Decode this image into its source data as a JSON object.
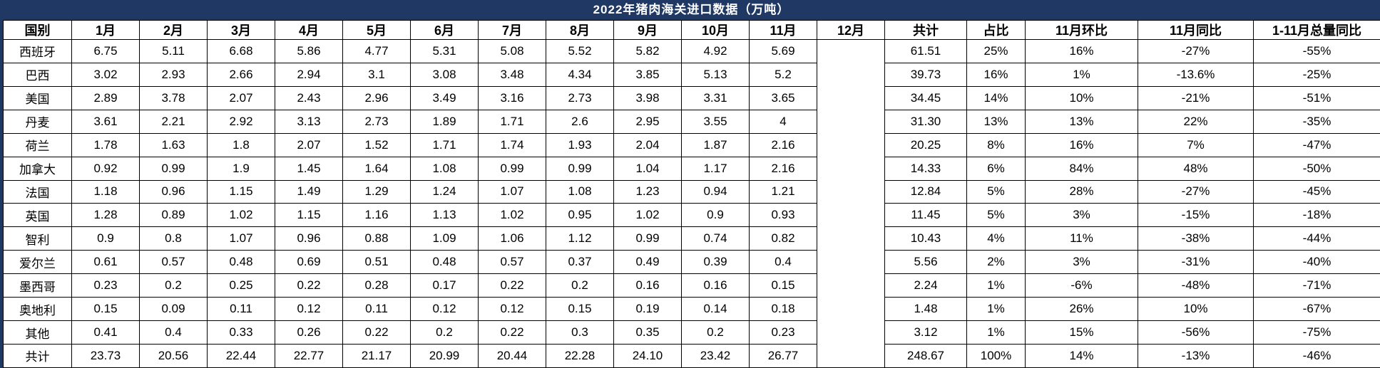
{
  "colors": {
    "title_bg": "#1f3864",
    "title_text": "#ffffff",
    "grid_border": "#000000",
    "cell_bg": "#ffffff",
    "cell_text": "#000000"
  },
  "chart_data": {
    "type": "table",
    "title": "2022年猪肉海关进口数据（万吨）",
    "columns": [
      "国别",
      "1月",
      "2月",
      "3月",
      "4月",
      "5月",
      "6月",
      "7月",
      "8月",
      "9月",
      "10月",
      "11月",
      "12月",
      "共计",
      "占比",
      "11月环比",
      "11月同比",
      "1-11月总量同比"
    ],
    "rows": [
      [
        "西班牙",
        "6.75",
        "5.11",
        "6.68",
        "5.86",
        "4.77",
        "5.31",
        "5.08",
        "5.52",
        "5.82",
        "4.92",
        "5.69",
        "",
        "61.51",
        "25%",
        "16%",
        "-27%",
        "-55%"
      ],
      [
        "巴西",
        "3.02",
        "2.93",
        "2.66",
        "2.94",
        "3.1",
        "3.08",
        "3.48",
        "4.34",
        "3.85",
        "5.13",
        "5.2",
        "",
        "39.73",
        "16%",
        "1%",
        "-13.6%",
        "-25%"
      ],
      [
        "美国",
        "2.89",
        "3.78",
        "2.07",
        "2.43",
        "2.96",
        "3.49",
        "3.16",
        "2.73",
        "3.98",
        "3.31",
        "3.65",
        "",
        "34.45",
        "14%",
        "10%",
        "-21%",
        "-51%"
      ],
      [
        "丹麦",
        "3.61",
        "2.21",
        "2.92",
        "3.13",
        "2.73",
        "1.89",
        "1.71",
        "2.6",
        "2.95",
        "3.55",
        "4",
        "",
        "31.30",
        "13%",
        "13%",
        "22%",
        "-35%"
      ],
      [
        "荷兰",
        "1.78",
        "1.63",
        "1.8",
        "2.07",
        "1.52",
        "1.71",
        "1.74",
        "1.93",
        "2.04",
        "1.87",
        "2.16",
        "",
        "20.25",
        "8%",
        "16%",
        "7%",
        "-47%"
      ],
      [
        "加拿大",
        "0.92",
        "0.99",
        "1.9",
        "1.45",
        "1.64",
        "1.08",
        "0.99",
        "0.99",
        "1.04",
        "1.17",
        "2.16",
        "",
        "14.33",
        "6%",
        "84%",
        "48%",
        "-50%"
      ],
      [
        "法国",
        "1.18",
        "0.96",
        "1.15",
        "1.49",
        "1.29",
        "1.24",
        "1.07",
        "1.08",
        "1.23",
        "0.94",
        "1.21",
        "",
        "12.84",
        "5%",
        "28%",
        "-27%",
        "-45%"
      ],
      [
        "英国",
        "1.28",
        "0.89",
        "1.02",
        "1.15",
        "1.16",
        "1.13",
        "1.02",
        "0.95",
        "1.02",
        "0.9",
        "0.93",
        "",
        "11.45",
        "5%",
        "3%",
        "-15%",
        "-18%"
      ],
      [
        "智利",
        "0.9",
        "0.8",
        "1.07",
        "0.96",
        "0.88",
        "1.09",
        "1.06",
        "1.12",
        "0.99",
        "0.74",
        "0.82",
        "",
        "10.43",
        "4%",
        "11%",
        "-38%",
        "-44%"
      ],
      [
        "爱尔兰",
        "0.61",
        "0.57",
        "0.48",
        "0.69",
        "0.51",
        "0.48",
        "0.57",
        "0.37",
        "0.49",
        "0.39",
        "0.4",
        "",
        "5.56",
        "2%",
        "3%",
        "-31%",
        "-40%"
      ],
      [
        "墨西哥",
        "0.23",
        "0.2",
        "0.25",
        "0.22",
        "0.28",
        "0.17",
        "0.22",
        "0.2",
        "0.16",
        "0.16",
        "0.15",
        "",
        "2.24",
        "1%",
        "-6%",
        "-48%",
        "-71%"
      ],
      [
        "奥地利",
        "0.15",
        "0.09",
        "0.11",
        "0.12",
        "0.11",
        "0.12",
        "0.12",
        "0.15",
        "0.19",
        "0.14",
        "0.18",
        "",
        "1.48",
        "1%",
        "26%",
        "10%",
        "-67%"
      ],
      [
        "其他",
        "0.41",
        "0.4",
        "0.33",
        "0.26",
        "0.22",
        "0.2",
        "0.22",
        "0.3",
        "0.35",
        "0.2",
        "0.23",
        "",
        "3.12",
        "1%",
        "15%",
        "-56%",
        "-75%"
      ],
      [
        "共计",
        "23.73",
        "20.56",
        "22.44",
        "22.77",
        "21.17",
        "20.99",
        "20.44",
        "22.28",
        "24.10",
        "23.42",
        "26.77",
        "",
        "248.67",
        "100%",
        "14%",
        "-13%",
        "-46%"
      ]
    ],
    "total_row_label": "共计",
    "empty_column": "12月",
    "layout_hints": {
      "alignment": "center",
      "grid": true,
      "title_position": "top-banner"
    }
  }
}
